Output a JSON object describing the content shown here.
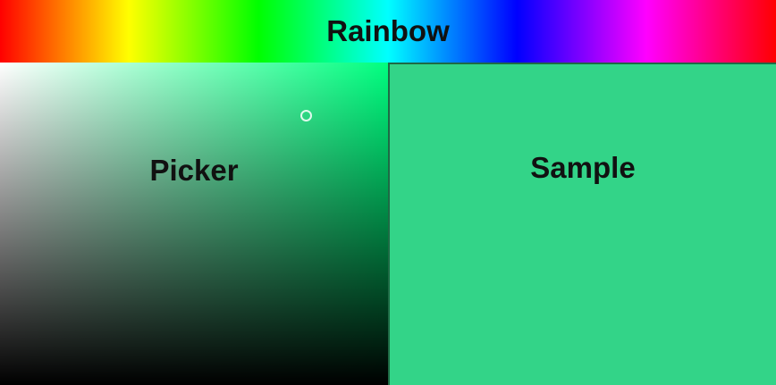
{
  "rainbow": {
    "label": "Rainbow"
  },
  "picker": {
    "label": "Picker",
    "hue_color": "#00ff80"
  },
  "sample": {
    "label": "Sample",
    "color": "#33d488"
  }
}
